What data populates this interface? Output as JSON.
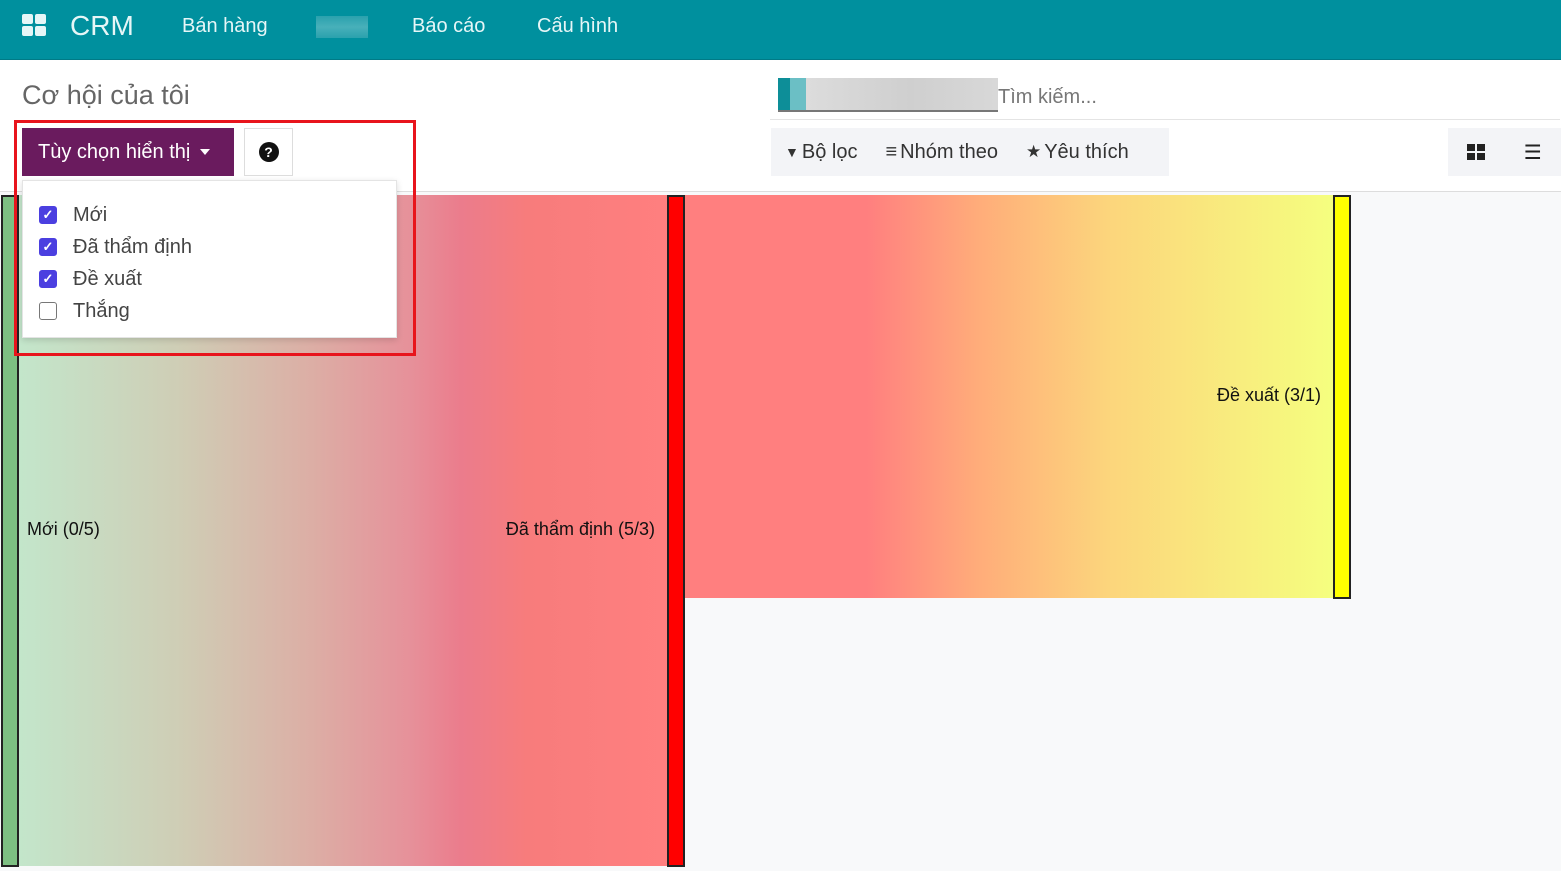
{
  "nav": {
    "brand": "CRM",
    "items": [
      "Bán hàng",
      "Báo cáo",
      "Cấu hình"
    ],
    "color": "#00909e"
  },
  "page": {
    "title": "Cơ hội của tôi"
  },
  "search": {
    "placeholder": "Tìm kiếm..."
  },
  "filters": {
    "filter": "Bộ lọc",
    "group_by": "Nhóm theo",
    "favorites": "Yêu thích"
  },
  "toolbar": {
    "display_options": "Tùy chọn hiển thị",
    "help_icon": "question-circle-icon"
  },
  "dropdown": {
    "options": [
      {
        "label": "Mới",
        "checked": true
      },
      {
        "label": "Đã thẩm định",
        "checked": true
      },
      {
        "label": "Đề xuất",
        "checked": true
      },
      {
        "label": "Thắng",
        "checked": false
      }
    ]
  },
  "sankey": {
    "nodes": [
      {
        "label": "Mới (0/5)",
        "color": "#7dbf82"
      },
      {
        "label": "Đã thẩm định (5/3)",
        "color": "#ff0000"
      },
      {
        "label": "Đề xuất (3/1)",
        "color": "#ffff00"
      }
    ],
    "links": [
      {
        "from": "Mới",
        "to": "Đã thẩm định",
        "value": 5
      },
      {
        "from": "Đã thẩm định",
        "to": "Đề xuất",
        "value": 3
      }
    ]
  }
}
